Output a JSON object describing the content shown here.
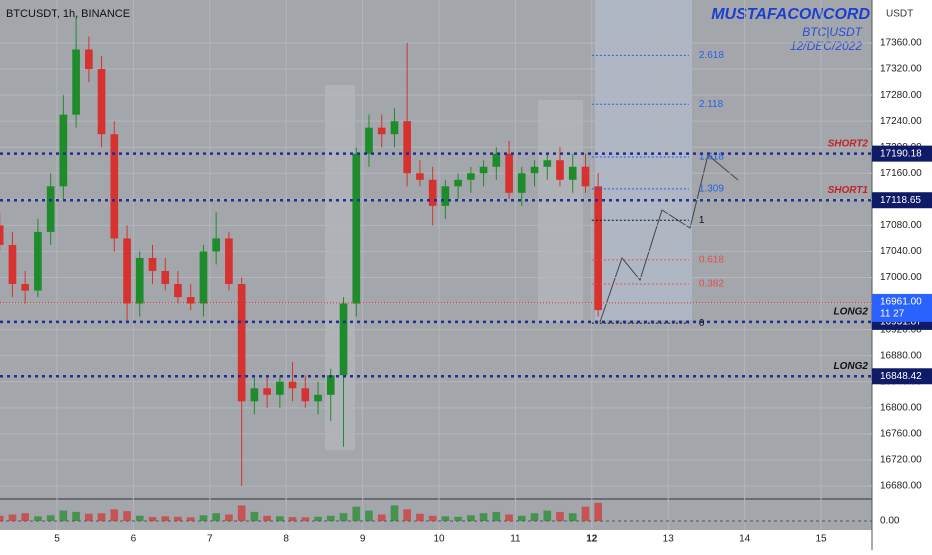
{
  "chart_data": {
    "type": "candlestick",
    "title": "BTCUSDT, 1h, BINANCE",
    "author": "MUSTAFACONCORD",
    "subtitle": "BTC|USDT",
    "date": "12/DEC/2022",
    "currency": "USDT",
    "xlim": [
      4.254,
      15.667
    ],
    "ylim": [
      16658.5,
      17426
    ],
    "xticks": [
      5,
      6,
      7,
      8,
      9,
      10,
      11,
      12,
      13,
      14,
      15
    ],
    "yticks": [
      {
        "value": 16680,
        "label": "16680.00"
      },
      {
        "value": 16720,
        "label": "16720.00"
      },
      {
        "value": 16760,
        "label": "16760.00"
      },
      {
        "value": 16800,
        "label": "16800.00"
      },
      {
        "value": 16840,
        "label": "16840.00"
      },
      {
        "value": 16880,
        "label": "16880.00"
      },
      {
        "value": 16920,
        "label": "16920.00"
      },
      {
        "value": 16960,
        "label": "16960.00"
      },
      {
        "value": 17000,
        "label": "17000.00"
      },
      {
        "value": 17040,
        "label": "17040.00"
      },
      {
        "value": 17080,
        "label": "17080.00"
      },
      {
        "value": 17120,
        "label": "17120.00"
      },
      {
        "value": 17160,
        "label": "17160.00"
      },
      {
        "value": 17200,
        "label": "17200.00"
      },
      {
        "value": 17240,
        "label": "17240.00"
      },
      {
        "value": 17280,
        "label": "17280.00"
      },
      {
        "value": 17320,
        "label": "17320.00"
      },
      {
        "value": 17360,
        "label": "17360.00"
      }
    ],
    "grid": true,
    "up_color": "#1e8c2a",
    "down_color": "#d6322f",
    "x": [
      4.25,
      4.417,
      4.583,
      4.75,
      4.917,
      5.083,
      5.25,
      5.417,
      5.583,
      5.75,
      5.917,
      6.083,
      6.25,
      6.417,
      6.583,
      6.75,
      6.917,
      7.083,
      7.25,
      7.417,
      7.583,
      7.75,
      7.917,
      8.083,
      8.25,
      8.417,
      8.583,
      8.75,
      8.917,
      9.083,
      9.25,
      9.417,
      9.583,
      9.75,
      9.917,
      10.083,
      10.25,
      10.417,
      10.583,
      10.75,
      10.917,
      11.083,
      11.25,
      11.417,
      11.583,
      11.75,
      11.917,
      12.083
    ],
    "open": [
      17080,
      17050,
      16990,
      16980,
      17070,
      17140,
      17250,
      17350,
      17320,
      17220,
      17060,
      16960,
      17030,
      17010,
      16990,
      16970,
      16960,
      17040,
      17060,
      16990,
      16810,
      16830,
      16820,
      16840,
      16830,
      16810,
      16820,
      16850,
      16960,
      17190,
      17230,
      17220,
      17240,
      17160,
      17150,
      17110,
      17140,
      17150,
      17160,
      17170,
      17190,
      17130,
      17160,
      17170,
      17180,
      17150,
      17170,
      17140
    ],
    "high": [
      17100,
      17070,
      17010,
      17090,
      17160,
      17280,
      17400,
      17370,
      17340,
      17240,
      17080,
      17040,
      17050,
      17030,
      17010,
      16990,
      17050,
      17100,
      17070,
      17000,
      16850,
      16850,
      16850,
      16870,
      16850,
      16840,
      16860,
      16970,
      17200,
      17250,
      17250,
      17260,
      17360,
      17180,
      17170,
      17150,
      17160,
      17170,
      17180,
      17200,
      17210,
      17170,
      17180,
      17190,
      17200,
      17190,
      17190,
      17160
    ],
    "low": [
      17040,
      16970,
      16960,
      16970,
      17050,
      17120,
      17230,
      17300,
      17200,
      17040,
      16930,
      16940,
      16990,
      16980,
      16960,
      16950,
      16940,
      17020,
      16980,
      16680,
      16790,
      16800,
      16800,
      16810,
      16800,
      16790,
      16780,
      16740,
      16940,
      17170,
      17200,
      17200,
      17140,
      17140,
      17080,
      17090,
      17120,
      17130,
      17140,
      17150,
      17120,
      17110,
      17140,
      17150,
      17140,
      17130,
      17130,
      16940
    ],
    "close": [
      17050,
      16990,
      16980,
      17070,
      17140,
      17250,
      17350,
      17320,
      17220,
      17060,
      16960,
      17030,
      17010,
      16990,
      16970,
      16960,
      17040,
      17060,
      16990,
      16810,
      16830,
      16820,
      16840,
      16830,
      16810,
      16820,
      16850,
      16960,
      17190,
      17230,
      17220,
      17240,
      17160,
      17150,
      17110,
      17140,
      17150,
      17160,
      17170,
      17190,
      17130,
      17160,
      17170,
      17180,
      17150,
      17170,
      17140,
      16950
    ],
    "volume": [
      20,
      25,
      30,
      18,
      22,
      40,
      35,
      28,
      30,
      45,
      38,
      20,
      15,
      18,
      16,
      14,
      22,
      30,
      25,
      60,
      35,
      20,
      18,
      15,
      14,
      16,
      20,
      30,
      55,
      40,
      25,
      60,
      45,
      28,
      20,
      18,
      16,
      22,
      30,
      35,
      25,
      20,
      30,
      40,
      35,
      30,
      55,
      70
    ],
    "vlim": [
      0,
      100
    ],
    "vticks": [
      {
        "value": 0,
        "label": "0.00"
      }
    ],
    "levels": [
      {
        "name": "SHORT2",
        "value": 17190.18
      },
      {
        "name": "SHORT1",
        "value": 17118.65
      },
      {
        "name": "LONG2",
        "value": 16931.87
      },
      {
        "name": "LONG2",
        "value": 16848.42
      }
    ],
    "last_price": {
      "value": 16961,
      "label": "16961.00",
      "countdown": "11 27"
    },
    "fib": [
      {
        "label": "2.618",
        "value": 17341
      },
      {
        "label": "2.118",
        "value": 17266
      },
      {
        "label": "1.618",
        "value": 17185
      },
      {
        "label": "1.309",
        "value": 17136
      },
      {
        "label": "1",
        "value": 17088
      },
      {
        "label": "0.618",
        "value": 17027
      },
      {
        "label": "0.382",
        "value": 16990
      },
      {
        "label": "0",
        "value": 16930
      }
    ],
    "fib_range": [
      12.0,
      13.27
    ]
  }
}
